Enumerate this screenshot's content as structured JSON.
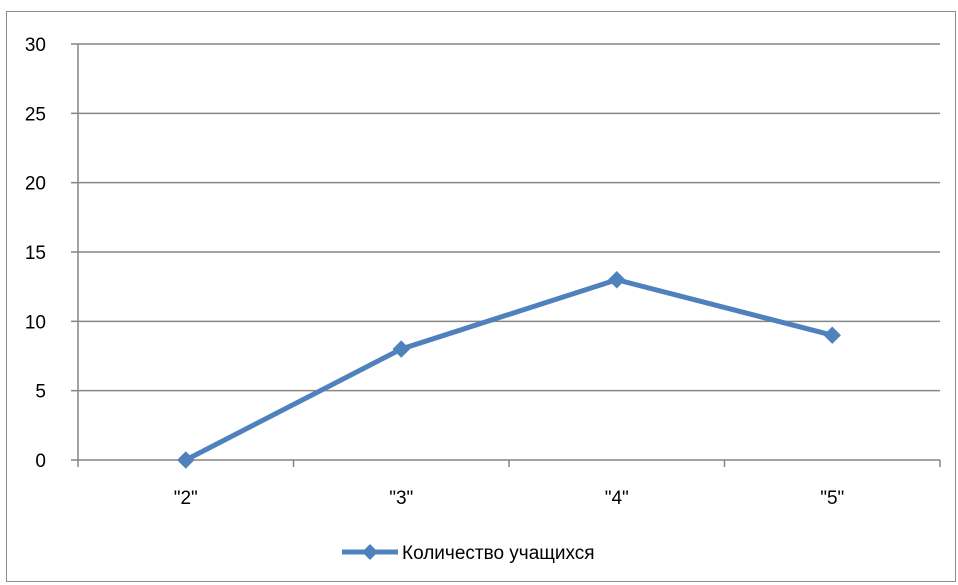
{
  "chart_data": {
    "type": "line",
    "title": "",
    "xlabel": "",
    "ylabel": "",
    "categories": [
      "\"2\"",
      "\"3\"",
      "\"4\"",
      "\"5\""
    ],
    "series": [
      {
        "name": "Количество учащихся",
        "values": [
          0,
          8,
          13,
          9
        ],
        "color": "#4f81bd",
        "marker": "diamond"
      }
    ],
    "ylim": [
      0,
      30
    ],
    "yticks": [
      "0",
      "5",
      "10",
      "15",
      "20",
      "25",
      "30"
    ],
    "grid": true,
    "legend_position": "bottom"
  }
}
